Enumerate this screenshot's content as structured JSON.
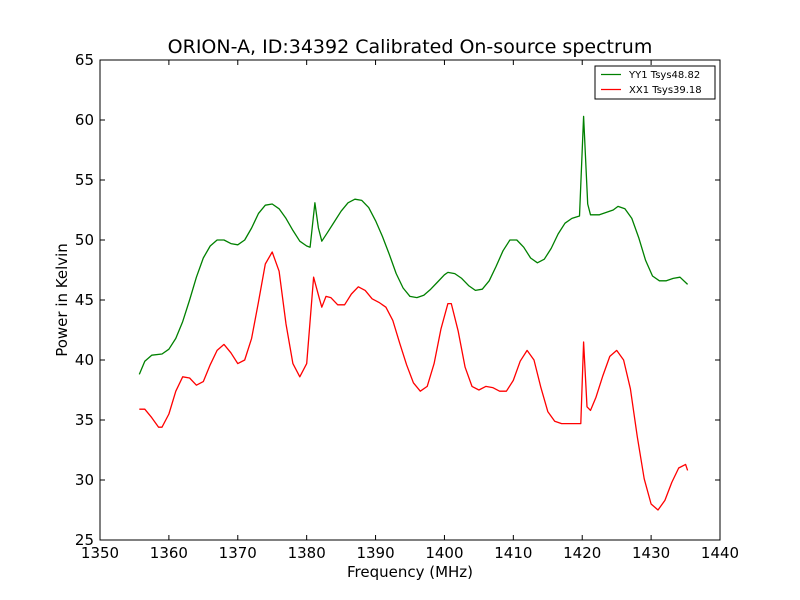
{
  "chart_data": {
    "type": "line",
    "title": "ORION-A, ID:34392 Calibrated On-source spectrum",
    "xlabel": "Frequency (MHz)",
    "ylabel": "Power in Kelvin",
    "xlim": [
      1350,
      1440
    ],
    "ylim": [
      25,
      65
    ],
    "xticks": [
      1350,
      1360,
      1370,
      1380,
      1390,
      1400,
      1410,
      1420,
      1430,
      1440
    ],
    "yticks": [
      25,
      30,
      35,
      40,
      45,
      50,
      55,
      60,
      65
    ],
    "grid": false,
    "legend_position": "top-right",
    "series": [
      {
        "name": "YY1 Tsys48.82",
        "color": "#008000",
        "points": [
          [
            1355.7,
            38.8
          ],
          [
            1356.5,
            39.9
          ],
          [
            1357.5,
            40.4
          ],
          [
            1359.0,
            40.5
          ],
          [
            1360.0,
            40.9
          ],
          [
            1361.0,
            41.8
          ],
          [
            1362.0,
            43.2
          ],
          [
            1363.0,
            45.0
          ],
          [
            1364.0,
            46.9
          ],
          [
            1365.0,
            48.5
          ],
          [
            1366.0,
            49.5
          ],
          [
            1367.0,
            50.0
          ],
          [
            1368.0,
            50.0
          ],
          [
            1369.0,
            49.7
          ],
          [
            1370.0,
            49.6
          ],
          [
            1371.0,
            50.0
          ],
          [
            1372.0,
            51.0
          ],
          [
            1373.0,
            52.2
          ],
          [
            1374.0,
            52.9
          ],
          [
            1375.0,
            53.0
          ],
          [
            1376.0,
            52.6
          ],
          [
            1377.0,
            51.8
          ],
          [
            1378.0,
            50.8
          ],
          [
            1379.0,
            49.9
          ],
          [
            1380.0,
            49.5
          ],
          [
            1380.5,
            49.4
          ],
          [
            1381.2,
            53.1
          ],
          [
            1381.7,
            51.0
          ],
          [
            1382.2,
            49.9
          ],
          [
            1383.0,
            50.6
          ],
          [
            1384.0,
            51.5
          ],
          [
            1385.0,
            52.4
          ],
          [
            1386.0,
            53.1
          ],
          [
            1387.0,
            53.4
          ],
          [
            1388.0,
            53.3
          ],
          [
            1389.0,
            52.7
          ],
          [
            1390.0,
            51.6
          ],
          [
            1391.0,
            50.3
          ],
          [
            1392.0,
            48.8
          ],
          [
            1393.0,
            47.2
          ],
          [
            1394.0,
            46.0
          ],
          [
            1395.0,
            45.3
          ],
          [
            1396.0,
            45.2
          ],
          [
            1397.0,
            45.4
          ],
          [
            1398.0,
            45.9
          ],
          [
            1399.0,
            46.5
          ],
          [
            1400.0,
            47.1
          ],
          [
            1400.5,
            47.3
          ],
          [
            1401.5,
            47.2
          ],
          [
            1402.5,
            46.8
          ],
          [
            1403.5,
            46.2
          ],
          [
            1404.5,
            45.8
          ],
          [
            1405.5,
            45.9
          ],
          [
            1406.5,
            46.6
          ],
          [
            1407.5,
            47.8
          ],
          [
            1408.5,
            49.1
          ],
          [
            1409.5,
            50.0
          ],
          [
            1410.5,
            50.0
          ],
          [
            1411.5,
            49.4
          ],
          [
            1412.5,
            48.5
          ],
          [
            1413.5,
            48.1
          ],
          [
            1414.5,
            48.4
          ],
          [
            1415.5,
            49.3
          ],
          [
            1416.5,
            50.5
          ],
          [
            1417.5,
            51.4
          ],
          [
            1418.5,
            51.8
          ],
          [
            1419.6,
            52.0
          ],
          [
            1420.2,
            60.3
          ],
          [
            1420.8,
            53.0
          ],
          [
            1421.2,
            52.1
          ],
          [
            1422.5,
            52.1
          ],
          [
            1423.5,
            52.3
          ],
          [
            1424.5,
            52.5
          ],
          [
            1425.2,
            52.8
          ],
          [
            1426.2,
            52.6
          ],
          [
            1427.2,
            51.8
          ],
          [
            1428.2,
            50.2
          ],
          [
            1429.2,
            48.3
          ],
          [
            1430.2,
            47.0
          ],
          [
            1431.2,
            46.6
          ],
          [
            1432.2,
            46.6
          ],
          [
            1433.2,
            46.8
          ],
          [
            1434.2,
            46.9
          ],
          [
            1435.3,
            46.3
          ]
        ]
      },
      {
        "name": "XX1 Tsys39.18",
        "color": "#ff0000",
        "points": [
          [
            1355.7,
            35.9
          ],
          [
            1356.5,
            35.9
          ],
          [
            1357.5,
            35.2
          ],
          [
            1358.5,
            34.4
          ],
          [
            1359.0,
            34.4
          ],
          [
            1360.0,
            35.5
          ],
          [
            1361.0,
            37.4
          ],
          [
            1362.0,
            38.6
          ],
          [
            1363.0,
            38.5
          ],
          [
            1364.0,
            37.9
          ],
          [
            1365.0,
            38.2
          ],
          [
            1366.0,
            39.6
          ],
          [
            1367.0,
            40.8
          ],
          [
            1368.0,
            41.3
          ],
          [
            1369.0,
            40.6
          ],
          [
            1370.0,
            39.7
          ],
          [
            1371.0,
            40.0
          ],
          [
            1372.0,
            41.8
          ],
          [
            1373.0,
            44.8
          ],
          [
            1374.0,
            48.0
          ],
          [
            1375.0,
            49.0
          ],
          [
            1376.0,
            47.4
          ],
          [
            1377.0,
            43.0
          ],
          [
            1378.0,
            39.7
          ],
          [
            1379.0,
            38.6
          ],
          [
            1380.0,
            39.7
          ],
          [
            1381.0,
            46.9
          ],
          [
            1381.8,
            45.2
          ],
          [
            1382.2,
            44.4
          ],
          [
            1382.8,
            45.3
          ],
          [
            1383.5,
            45.2
          ],
          [
            1384.5,
            44.6
          ],
          [
            1385.5,
            44.6
          ],
          [
            1386.5,
            45.5
          ],
          [
            1387.5,
            46.1
          ],
          [
            1388.5,
            45.8
          ],
          [
            1389.5,
            45.1
          ],
          [
            1390.5,
            44.8
          ],
          [
            1391.5,
            44.4
          ],
          [
            1392.5,
            43.3
          ],
          [
            1393.5,
            41.4
          ],
          [
            1394.5,
            39.6
          ],
          [
            1395.5,
            38.1
          ],
          [
            1396.5,
            37.4
          ],
          [
            1397.5,
            37.8
          ],
          [
            1398.5,
            39.7
          ],
          [
            1399.5,
            42.6
          ],
          [
            1400.5,
            44.7
          ],
          [
            1401.0,
            44.7
          ],
          [
            1402.0,
            42.4
          ],
          [
            1403.0,
            39.4
          ],
          [
            1404.0,
            37.8
          ],
          [
            1405.0,
            37.5
          ],
          [
            1406.0,
            37.8
          ],
          [
            1407.0,
            37.7
          ],
          [
            1408.0,
            37.4
          ],
          [
            1409.0,
            37.4
          ],
          [
            1410.0,
            38.3
          ],
          [
            1411.0,
            39.9
          ],
          [
            1412.0,
            40.8
          ],
          [
            1413.0,
            40.0
          ],
          [
            1414.0,
            37.7
          ],
          [
            1415.0,
            35.7
          ],
          [
            1416.0,
            34.9
          ],
          [
            1417.0,
            34.7
          ],
          [
            1418.0,
            34.7
          ],
          [
            1419.8,
            34.7
          ],
          [
            1420.2,
            41.5
          ],
          [
            1420.7,
            36.1
          ],
          [
            1421.2,
            35.8
          ],
          [
            1422.0,
            36.9
          ],
          [
            1423.0,
            38.7
          ],
          [
            1424.0,
            40.3
          ],
          [
            1425.0,
            40.8
          ],
          [
            1426.0,
            40.0
          ],
          [
            1427.0,
            37.6
          ],
          [
            1428.0,
            33.6
          ],
          [
            1429.0,
            30.1
          ],
          [
            1430.0,
            28.0
          ],
          [
            1431.0,
            27.5
          ],
          [
            1432.0,
            28.3
          ],
          [
            1433.0,
            29.8
          ],
          [
            1434.0,
            31.0
          ],
          [
            1435.0,
            31.3
          ],
          [
            1435.3,
            30.8
          ]
        ]
      }
    ]
  }
}
